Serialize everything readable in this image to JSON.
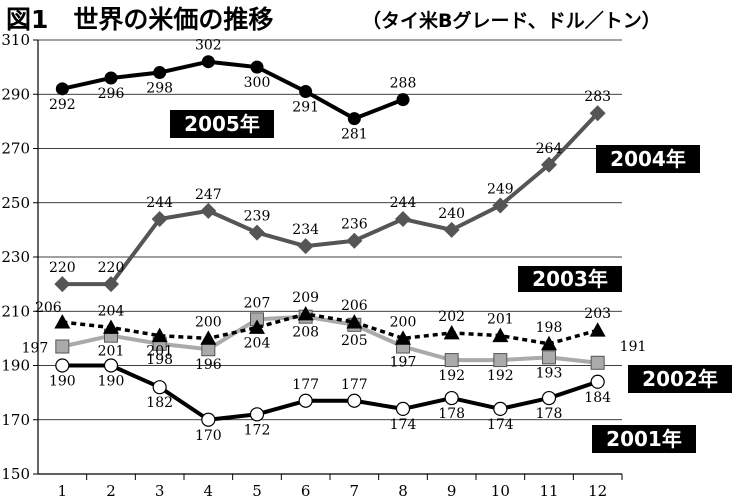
{
  "chart_data": {
    "type": "line",
    "title": "図1　世界の米価の推移",
    "subtitle": "（タイ米Bグレード、ドル／トン）",
    "xlabel": "",
    "ylabel": "",
    "categories": [
      "1",
      "2",
      "3",
      "4",
      "5",
      "6",
      "7",
      "8",
      "9",
      "10",
      "11",
      "12"
    ],
    "ylim": [
      150,
      310
    ],
    "yticks": [
      150,
      170,
      190,
      210,
      230,
      250,
      270,
      290,
      310
    ],
    "grid": true,
    "series": [
      {
        "name": "2005年",
        "values": [
          292,
          296,
          298,
          302,
          300,
          291,
          281,
          288,
          null,
          null,
          null,
          null
        ],
        "color": "#000000",
        "marker": "circle-filled",
        "dash": "solid"
      },
      {
        "name": "2004年",
        "values": [
          220,
          220,
          244,
          247,
          239,
          234,
          236,
          244,
          240,
          249,
          264,
          283
        ],
        "color": "#555555",
        "marker": "diamond",
        "dash": "solid"
      },
      {
        "name": "2003年",
        "values": [
          206,
          204,
          201,
          200,
          204,
          209,
          206,
          200,
          202,
          201,
          198,
          203
        ],
        "color": "#000000",
        "marker": "triangle",
        "dash": "dotted"
      },
      {
        "name": "2002年",
        "values": [
          197,
          201,
          198,
          196,
          207,
          208,
          205,
          197,
          192,
          192,
          193,
          191
        ],
        "color": "#aaaaaa",
        "marker": "square",
        "dash": "solid"
      },
      {
        "name": "2001年",
        "values": [
          190,
          190,
          182,
          170,
          172,
          177,
          177,
          174,
          178,
          174,
          178,
          184
        ],
        "color": "#000000",
        "marker": "circle-open",
        "dash": "solid"
      }
    ]
  }
}
